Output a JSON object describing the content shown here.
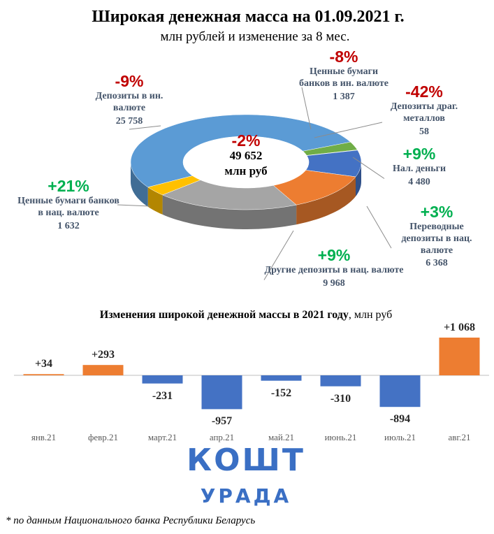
{
  "chart_data": [
    {
      "type": "pie",
      "title": "Широкая денежная масса на 01.09.2021 г.",
      "subtitle": "млн рублей и изменение за 8 мес.",
      "total": 49652,
      "total_label": "49 652",
      "total_unit": "млн руб",
      "total_change": -2,
      "total_change_label": "-2%",
      "categories": [
        "Депозиты в ин. валюте",
        "Ценные бумаги банков в ин. валюте",
        "Депозиты драг. металлов",
        "Нал. деньги",
        "Переводные депозиты в нац. валюте",
        "Другие депозиты в нац. валюте",
        "Ценные бумаги банков в нац. валюте"
      ],
      "values": [
        25758,
        1387,
        58,
        4480,
        6368,
        9968,
        1632
      ],
      "value_labels": [
        "25 758",
        "1 387",
        "58",
        "4 480",
        "6 368",
        "9 968",
        "1 632"
      ],
      "changes": [
        -9,
        -8,
        -42,
        9,
        3,
        9,
        21
      ],
      "change_labels": [
        "-9%",
        "-8%",
        "-42%",
        "+9%",
        "+3%",
        "+9%",
        "+21%"
      ],
      "colors": [
        "#5b9bd5",
        "#70ad47",
        "#264478",
        "#4472c4",
        "#ed7d31",
        "#a5a5a5",
        "#ffc000"
      ]
    },
    {
      "type": "bar",
      "title": "Изменения широкой денежной массы в 2021 году",
      "title_unit": ", млн руб",
      "categories": [
        "янв.21",
        "февр.21",
        "март.21",
        "апр.21",
        "май.21",
        "июнь.21",
        "июль.21",
        "авг.21"
      ],
      "values": [
        34,
        293,
        -231,
        -957,
        -152,
        -310,
        -894,
        1068
      ],
      "value_labels": [
        "+34",
        "+293",
        "-231",
        "-957",
        "-152",
        "-310",
        "-894",
        "+1 068"
      ],
      "positive_color": "#ed7d31",
      "negative_color": "#4472c4"
    }
  ],
  "logo": {
    "top": "КОШТ",
    "bottom": "УРАДА"
  },
  "footnote": "* по данным Национального банка Республики Беларусь"
}
